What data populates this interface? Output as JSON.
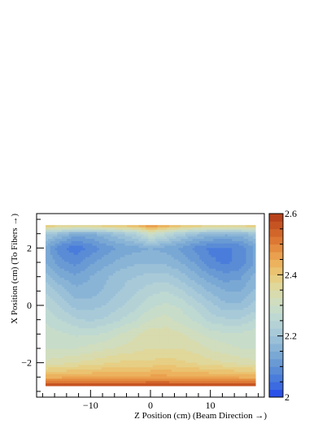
{
  "chart_data": {
    "type": "heatmap",
    "title": "",
    "xlabel": "Z Position (cm) (Beam Direction →)",
    "ylabel": "X Position (cm) (To Fibers →)",
    "xlim": [
      -19,
      19
    ],
    "ylim": [
      -3.2,
      3.2
    ],
    "x_ticks": [
      -10,
      0,
      10
    ],
    "y_ticks": [
      -2,
      0,
      2
    ],
    "colorbar": {
      "range": [
        2.0,
        2.6
      ],
      "ticks": [
        2,
        2.2,
        2.4,
        2.6
      ],
      "n_levels": 24,
      "colors": [
        "#2b52e8",
        "#3c6ae0",
        "#4a7ddb",
        "#5a8cd6",
        "#6a9ad4",
        "#7aa8d4",
        "#8ab4d6",
        "#9ac0d8",
        "#a8cad8",
        "#b4d2d6",
        "#bed8d2",
        "#c8dcca",
        "#d0ddbe",
        "#d8dbae",
        "#e0d79a",
        "#e6cf84",
        "#eac270",
        "#ecb25e",
        "#eaa04e",
        "#e48c40",
        "#dc7834",
        "#d2662a",
        "#c65422",
        "#b8431c"
      ]
    },
    "x": [
      -17.5,
      -15,
      -12.5,
      -10,
      -7.5,
      -5,
      -2.5,
      0,
      2.5,
      5,
      7.5,
      10,
      12.5,
      15,
      17.5
    ],
    "y": [
      -2.8,
      -2.5,
      -2.0,
      -1.5,
      -1.0,
      -0.5,
      0.0,
      0.5,
      1.0,
      1.5,
      2.0,
      2.5,
      2.8
    ],
    "z": [
      [
        2.57,
        2.57,
        2.57,
        2.57,
        2.57,
        2.57,
        2.57,
        2.57,
        2.57,
        2.57,
        2.57,
        2.57,
        2.57,
        2.57,
        2.57
      ],
      [
        2.44,
        2.44,
        2.45,
        2.45,
        2.45,
        2.45,
        2.45,
        2.46,
        2.46,
        2.45,
        2.45,
        2.45,
        2.45,
        2.44,
        2.44
      ],
      [
        2.33,
        2.34,
        2.35,
        2.36,
        2.37,
        2.38,
        2.38,
        2.38,
        2.39,
        2.38,
        2.37,
        2.36,
        2.35,
        2.34,
        2.33
      ],
      [
        2.3,
        2.3,
        2.3,
        2.31,
        2.32,
        2.33,
        2.34,
        2.35,
        2.35,
        2.35,
        2.34,
        2.32,
        2.31,
        2.3,
        2.3
      ],
      [
        2.29,
        2.28,
        2.27,
        2.27,
        2.28,
        2.3,
        2.32,
        2.34,
        2.34,
        2.33,
        2.31,
        2.29,
        2.28,
        2.28,
        2.29
      ],
      [
        2.27,
        2.25,
        2.23,
        2.22,
        2.23,
        2.25,
        2.27,
        2.3,
        2.31,
        2.29,
        2.27,
        2.24,
        2.23,
        2.23,
        2.25
      ],
      [
        2.25,
        2.22,
        2.19,
        2.19,
        2.2,
        2.22,
        2.24,
        2.27,
        2.28,
        2.27,
        2.24,
        2.21,
        2.18,
        2.18,
        2.21
      ],
      [
        2.22,
        2.19,
        2.16,
        2.16,
        2.18,
        2.2,
        2.22,
        2.24,
        2.25,
        2.23,
        2.2,
        2.17,
        2.15,
        2.15,
        2.18
      ],
      [
        2.19,
        2.15,
        2.13,
        2.15,
        2.17,
        2.19,
        2.2,
        2.21,
        2.21,
        2.19,
        2.16,
        2.13,
        2.11,
        2.12,
        2.16
      ],
      [
        2.15,
        2.11,
        2.09,
        2.12,
        2.14,
        2.16,
        2.17,
        2.17,
        2.17,
        2.15,
        2.12,
        2.08,
        2.07,
        2.08,
        2.13
      ],
      [
        2.14,
        2.08,
        2.06,
        2.08,
        2.11,
        2.13,
        2.14,
        2.15,
        2.14,
        2.12,
        2.09,
        2.07,
        2.07,
        2.08,
        2.13
      ],
      [
        2.21,
        2.18,
        2.14,
        2.15,
        2.17,
        2.2,
        2.23,
        2.3,
        2.26,
        2.22,
        2.19,
        2.17,
        2.16,
        2.17,
        2.2
      ],
      [
        2.41,
        2.4,
        2.4,
        2.4,
        2.41,
        2.42,
        2.44,
        2.49,
        2.46,
        2.43,
        2.41,
        2.4,
        2.4,
        2.4,
        2.41
      ]
    ]
  }
}
